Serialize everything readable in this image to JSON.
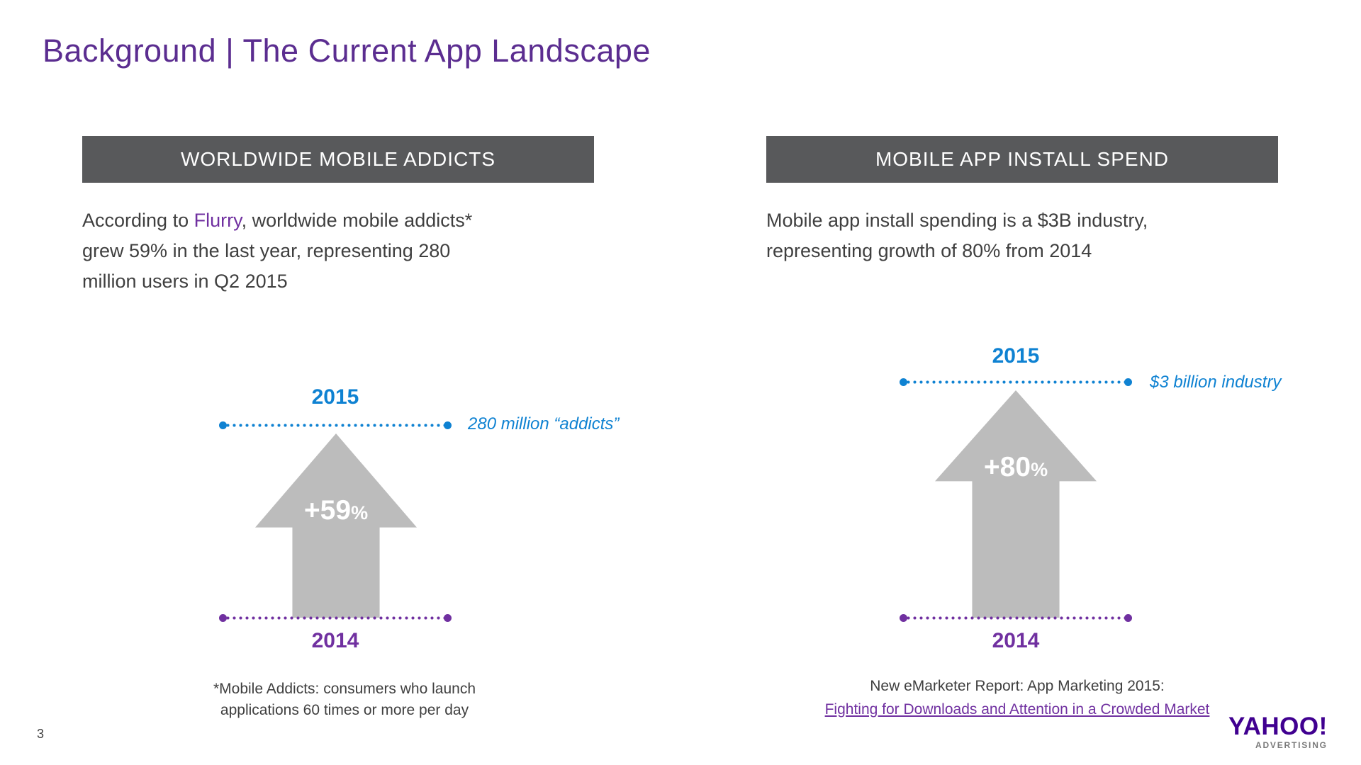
{
  "slide": {
    "title": "Background | The Current App Landscape",
    "page_number": "3"
  },
  "left_panel": {
    "header": "WORLDWIDE MOBILE ADDICTS",
    "body": {
      "line1_prefix": "According to ",
      "line1_brand": "Flurry",
      "line1_suffix": ", worldwide mobile addicts*",
      "line2": "grew 59% in the last year, representing 280",
      "line3": "million users in Q2 2015"
    },
    "chart": {
      "top_year": "2015",
      "top_annotation": "280 million “addicts”",
      "growth_value": "+59",
      "growth_unit": "%",
      "bottom_year": "2014"
    },
    "footnote_line1": "*Mobile Addicts: consumers who launch",
    "footnote_line2": "applications 60 times or more per day"
  },
  "right_panel": {
    "header": "MOBILE APP INSTALL SPEND",
    "body": {
      "line1": "Mobile app install spending is a $3B industry,",
      "line2": "representing growth of 80% from 2014"
    },
    "chart": {
      "top_year": "2015",
      "top_annotation": "$3 billion industry",
      "growth_value": "+80",
      "growth_unit": "%",
      "bottom_year": "2014"
    },
    "footnote_line1": "New eMarketer Report: App Marketing 2015:",
    "footnote_link": "Fighting for Downloads and Attention in a Crowded Market"
  },
  "footer": {
    "logo_text": "YAHOO!",
    "logo_subtext": "ADVERTISING"
  },
  "colors": {
    "title_purple": "#5b2d90",
    "header_bar": "#58595b",
    "accent_blue": "#0f82d2",
    "accent_purple": "#7030a0",
    "arrow_gray": "#bcbcbc",
    "yahoo_purple": "#400090",
    "body_text": "#3f3f3f"
  }
}
